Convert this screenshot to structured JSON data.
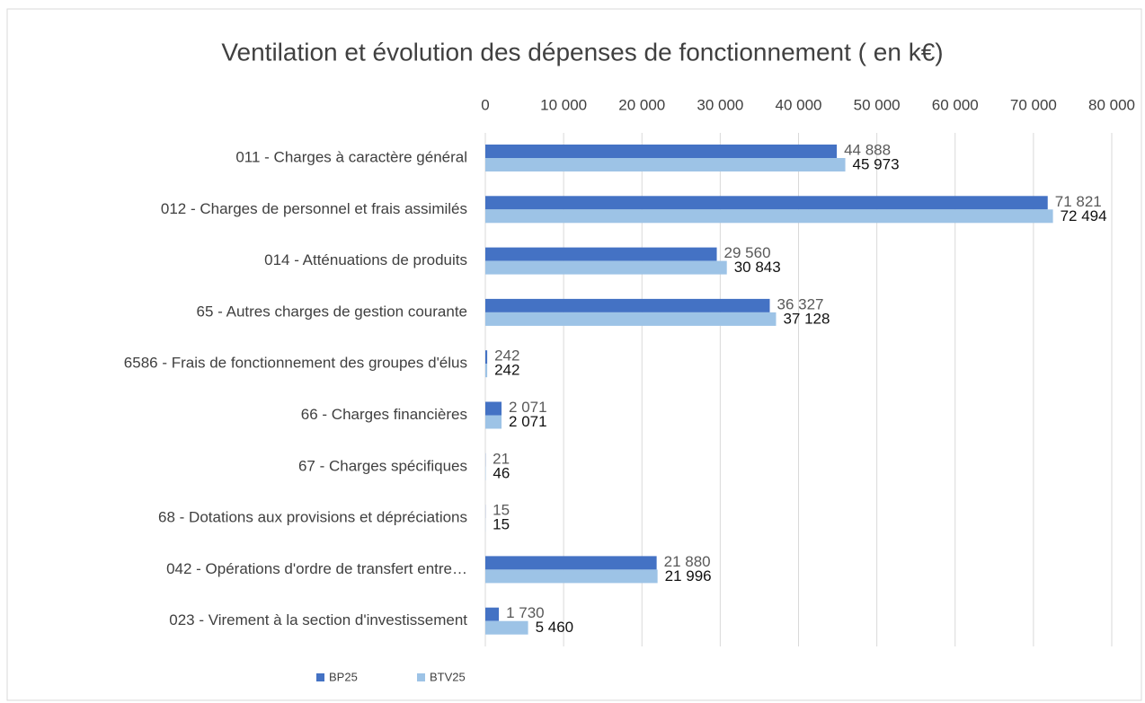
{
  "chart_data": {
    "type": "bar",
    "orientation": "horizontal",
    "title": "Ventilation et évolution des dépenses de fonctionnement ( en k€)",
    "categories": [
      "011 - Charges à caractère général",
      "012 - Charges de personnel et frais assimilés",
      "014 - Atténuations de produits",
      "65 - Autres charges de gestion courante",
      "6586 - Frais de fonctionnement des groupes d'élus",
      "66 - Charges financières",
      "67 - Charges spécifiques",
      "68 - Dotations aux provisions et dépréciations",
      "042 - Opérations d'ordre de transfert entre…",
      "023 - Virement à la section d'investissement"
    ],
    "series": [
      {
        "name": "BP25",
        "color": "#4472c4",
        "values": [
          44888,
          71821,
          29560,
          36327,
          242,
          2071,
          21,
          15,
          21880,
          1730
        ],
        "value_labels": [
          "44 888",
          "71 821",
          "29 560",
          "36 327",
          "242",
          "2 071",
          "21",
          "15",
          "21 880",
          "1 730"
        ]
      },
      {
        "name": "BTV25",
        "color": "#9dc3e6",
        "values": [
          45973,
          72494,
          30843,
          37128,
          242,
          2071,
          46,
          15,
          21996,
          5460
        ],
        "value_labels": [
          "45 973",
          "72 494",
          "30 843",
          "37 128",
          "242",
          "2 071",
          "46",
          "15",
          "21 996",
          "5 460"
        ]
      }
    ],
    "xlim": [
      0,
      80000
    ],
    "xticks": [
      0,
      {
        "value": 10000,
        "label": "10 000"
      },
      {
        "value": 20000,
        "label": "20 000"
      },
      {
        "value": 30000,
        "label": "30 000"
      },
      {
        "value": 40000,
        "label": "40 000"
      },
      {
        "value": 50000,
        "label": "50 000"
      },
      {
        "value": 60000,
        "label": "60 000"
      },
      {
        "value": 70000,
        "label": "70 000"
      },
      {
        "value": 80000,
        "label": "80 000"
      }
    ],
    "grid": true,
    "legend": "bottom"
  }
}
